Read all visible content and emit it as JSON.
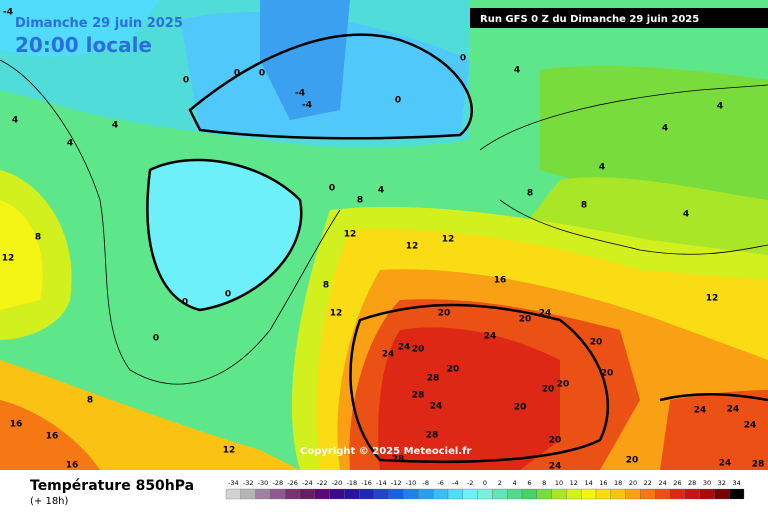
{
  "header": {
    "date": "Dimanche 29 juin 2025",
    "time": "20:00 locale",
    "run": "Run GFS 0 Z du Dimanche 29 juin 2025"
  },
  "copyright": "Copyright © 2025 Meteociel.fr",
  "legend": {
    "title": "Température 850hPa",
    "subtitle": "(+ 18h)",
    "ticks": [
      -34,
      -32,
      -30,
      -28,
      -26,
      -24,
      -22,
      -20,
      -18,
      -16,
      -14,
      -12,
      -10,
      -8,
      -6,
      -4,
      -2,
      0,
      2,
      4,
      6,
      8,
      10,
      12,
      14,
      16,
      18,
      20,
      22,
      24,
      26,
      28,
      30,
      32,
      34
    ],
    "colors": [
      "#d3d3d3",
      "#b4b4b4",
      "#a082a0",
      "#8c5a8c",
      "#78326e",
      "#641e64",
      "#5a0a78",
      "#3c0a8c",
      "#2814a0",
      "#1e28b4",
      "#1e46c8",
      "#1464dc",
      "#1e82e6",
      "#28a0f0",
      "#3cbef5",
      "#50dcfa",
      "#6ef0fa",
      "#78f0dc",
      "#64e6b4",
      "#50dc8c",
      "#46d264",
      "#78dc3c",
      "#aae628",
      "#d2f01e",
      "#f5f514",
      "#fadc14",
      "#fac314",
      "#faa014",
      "#f57814",
      "#eb5014",
      "#dc2814",
      "#c81414",
      "#aa0a0a",
      "#780000",
      "#000000"
    ]
  },
  "contour_labels": [
    -4,
    0,
    4,
    0,
    0,
    0,
    -4,
    -4,
    0,
    4,
    4,
    4,
    4,
    4,
    4,
    0,
    4,
    8,
    8,
    8,
    4,
    8,
    12,
    12,
    12,
    12,
    16,
    0,
    0,
    0,
    8,
    12,
    12,
    20,
    24,
    20,
    24,
    24,
    24,
    20,
    20,
    28,
    20,
    20,
    20,
    20,
    28,
    24,
    20,
    24,
    24,
    24,
    28,
    20,
    8,
    16,
    16,
    16,
    12,
    28,
    24,
    20,
    24,
    28
  ]
}
